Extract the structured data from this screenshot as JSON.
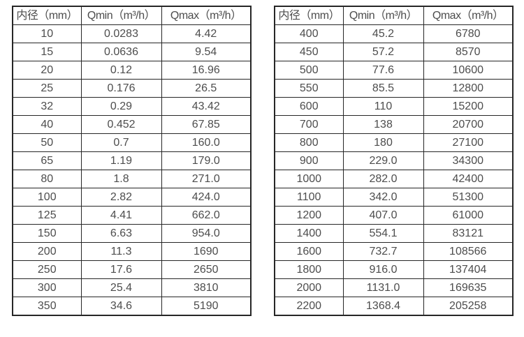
{
  "colors": {
    "background": "#ffffff",
    "border": "#262626",
    "text": "#4d4d4d"
  },
  "tables": [
    {
      "name": "flow-table-left",
      "headers": [
        "内径（mm）",
        "Qmin（m³/h）",
        "Qmax（m³/h）"
      ],
      "rows": [
        [
          "10",
          "0.0283",
          "4.42"
        ],
        [
          "15",
          "0.0636",
          "9.54"
        ],
        [
          "20",
          "0.12",
          "16.96"
        ],
        [
          "25",
          "0.176",
          "26.5"
        ],
        [
          "32",
          "0.29",
          "43.42"
        ],
        [
          "40",
          "0.452",
          "67.85"
        ],
        [
          "50",
          "0.7",
          "160.0"
        ],
        [
          "65",
          "1.19",
          "179.0"
        ],
        [
          "80",
          "1.8",
          "271.0"
        ],
        [
          "100",
          "2.82",
          "424.0"
        ],
        [
          "125",
          "4.41",
          "662.0"
        ],
        [
          "150",
          "6.63",
          "954.0"
        ],
        [
          "200",
          "11.3",
          "1690"
        ],
        [
          "250",
          "17.6",
          "2650"
        ],
        [
          "300",
          "25.4",
          "3810"
        ],
        [
          "350",
          "34.6",
          "5190"
        ]
      ]
    },
    {
      "name": "flow-table-right",
      "headers": [
        "内径（mm）",
        "Qmin（m³/h）",
        "Qmax（m³/h）"
      ],
      "rows": [
        [
          "400",
          "45.2",
          "6780"
        ],
        [
          "450",
          "57.2",
          "8570"
        ],
        [
          "500",
          "77.6",
          "10600"
        ],
        [
          "550",
          "85.5",
          "12800"
        ],
        [
          "600",
          "110",
          "15200"
        ],
        [
          "700",
          "138",
          "20700"
        ],
        [
          "800",
          "180",
          "27100"
        ],
        [
          "900",
          "229.0",
          "34300"
        ],
        [
          "1000",
          "282.0",
          "42400"
        ],
        [
          "1100",
          "342.0",
          "51300"
        ],
        [
          "1200",
          "407.0",
          "61000"
        ],
        [
          "1400",
          "554.1",
          "83121"
        ],
        [
          "1600",
          "732.7",
          "108566"
        ],
        [
          "1800",
          "916.0",
          "137404"
        ],
        [
          "2000",
          "1131.0",
          "169635"
        ],
        [
          "2200",
          "1368.4",
          "205258"
        ]
      ]
    }
  ]
}
